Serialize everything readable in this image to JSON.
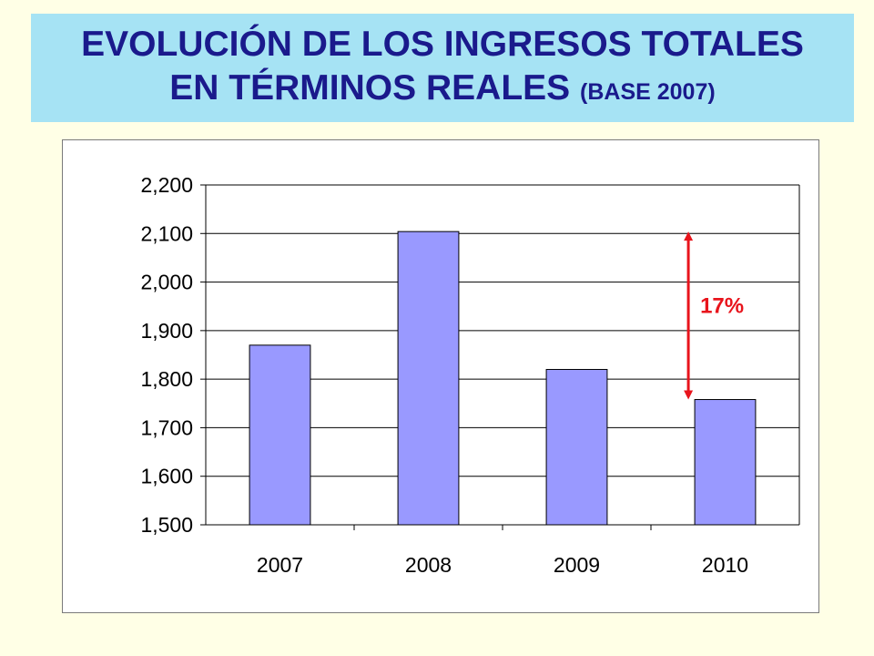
{
  "title": {
    "line1": "EVOLUCIÓN DE LOS INGRESOS TOTALES",
    "line2": "EN TÉRMINOS REALES",
    "line2_sub": "(BASE 2007)"
  },
  "chart_data": {
    "type": "bar",
    "categories": [
      "2007",
      "2008",
      "2009",
      "2010"
    ],
    "values": [
      1870,
      2104,
      1820,
      1758
    ],
    "ylim": [
      1500,
      2200
    ],
    "yticks": [
      1500,
      1600,
      1700,
      1800,
      1900,
      2000,
      2100,
      2200
    ],
    "ytick_labels": [
      "1,500",
      "1,600",
      "1,700",
      "1,800",
      "1,900",
      "2,000",
      "2,100",
      "2,200"
    ],
    "grid": true,
    "bar_color": "#9999ff",
    "annotation": {
      "text": "17%",
      "from_value": 2104,
      "to_value": 1758,
      "category": "2010",
      "color": "#e8141c"
    }
  }
}
